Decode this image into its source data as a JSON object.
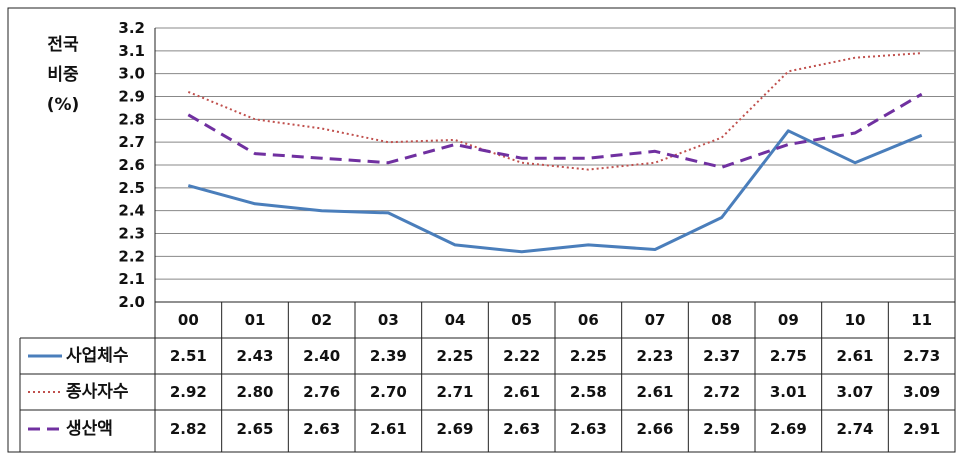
{
  "chart_data": {
    "type": "line",
    "ylabel_lines": [
      "전국",
      "비중",
      "(%)"
    ],
    "categories": [
      "00",
      "01",
      "02",
      "03",
      "04",
      "05",
      "06",
      "07",
      "08",
      "09",
      "10",
      "11"
    ],
    "yticks": [
      "3.2",
      "3.1",
      "3.0",
      "2.9",
      "2.8",
      "2.7",
      "2.6",
      "2.5",
      "2.4",
      "2.3",
      "2.2",
      "2.1",
      "2.0"
    ],
    "ylim": [
      2.0,
      3.2
    ],
    "grid": true,
    "legend": "table-left",
    "series": [
      {
        "name": "사업체수",
        "style": "solid",
        "color": "#4a7ebb",
        "values": [
          2.51,
          2.43,
          2.4,
          2.39,
          2.25,
          2.22,
          2.25,
          2.23,
          2.37,
          2.75,
          2.61,
          2.73
        ],
        "labels": [
          "2.51",
          "2.43",
          "2.40",
          "2.39",
          "2.25",
          "2.22",
          "2.25",
          "2.23",
          "2.37",
          "2.75",
          "2.61",
          "2.73"
        ]
      },
      {
        "name": "종사자수",
        "style": "dotted",
        "color": "#c0504d",
        "values": [
          2.92,
          2.8,
          2.76,
          2.7,
          2.71,
          2.61,
          2.58,
          2.61,
          2.72,
          3.01,
          3.07,
          3.09
        ],
        "labels": [
          "2.92",
          "2.80",
          "2.76",
          "2.70",
          "2.71",
          "2.61",
          "2.58",
          "2.61",
          "2.72",
          "3.01",
          "3.07",
          "3.09"
        ]
      },
      {
        "name": "생산액",
        "style": "dashed",
        "color": "#7030a0",
        "values": [
          2.82,
          2.65,
          2.63,
          2.61,
          2.69,
          2.63,
          2.63,
          2.66,
          2.59,
          2.69,
          2.74,
          2.91
        ],
        "labels": [
          "2.82",
          "2.65",
          "2.63",
          "2.61",
          "2.69",
          "2.63",
          "2.63",
          "2.66",
          "2.59",
          "2.69",
          "2.74",
          "2.91"
        ]
      }
    ]
  }
}
